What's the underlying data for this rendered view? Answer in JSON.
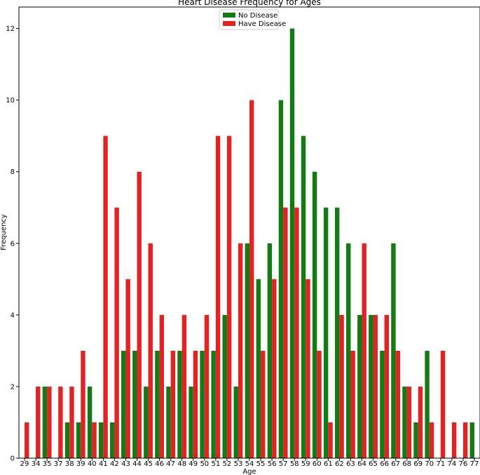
{
  "chart_data": {
    "type": "bar",
    "title": "Heart Disease Frequency for Ages",
    "xlabel": "Age",
    "ylabel": "Frequency",
    "ylim": [
      0,
      12.6
    ],
    "yticks": [
      0,
      2,
      4,
      6,
      8,
      10,
      12
    ],
    "grid": false,
    "legend_position": "top-center",
    "categories": [
      "29",
      "34",
      "35",
      "37",
      "38",
      "39",
      "40",
      "41",
      "42",
      "43",
      "44",
      "45",
      "46",
      "47",
      "48",
      "49",
      "50",
      "51",
      "52",
      "53",
      "54",
      "55",
      "56",
      "57",
      "58",
      "59",
      "60",
      "61",
      "62",
      "63",
      "64",
      "65",
      "66",
      "67",
      "68",
      "69",
      "70",
      "71",
      "74",
      "76",
      "77"
    ],
    "series": [
      {
        "name": "No Disease",
        "color": "#157a15",
        "values": [
          0,
          0,
          2,
          0,
          1,
          1,
          2,
          1,
          1,
          3,
          3,
          2,
          3,
          2,
          3,
          2,
          3,
          3,
          4,
          2,
          6,
          5,
          6,
          10,
          12,
          9,
          8,
          7,
          7,
          6,
          4,
          4,
          3,
          6,
          2,
          1,
          3,
          0,
          0,
          0,
          1
        ]
      },
      {
        "name": "Have Disease",
        "color": "#e02424",
        "values": [
          1,
          2,
          2,
          2,
          2,
          3,
          1,
          9,
          7,
          5,
          8,
          6,
          4,
          3,
          4,
          3,
          4,
          9,
          9,
          6,
          10,
          3,
          5,
          7,
          7,
          5,
          3,
          1,
          4,
          3,
          6,
          4,
          4,
          3,
          2,
          2,
          1,
          3,
          1,
          1,
          0
        ]
      }
    ]
  }
}
